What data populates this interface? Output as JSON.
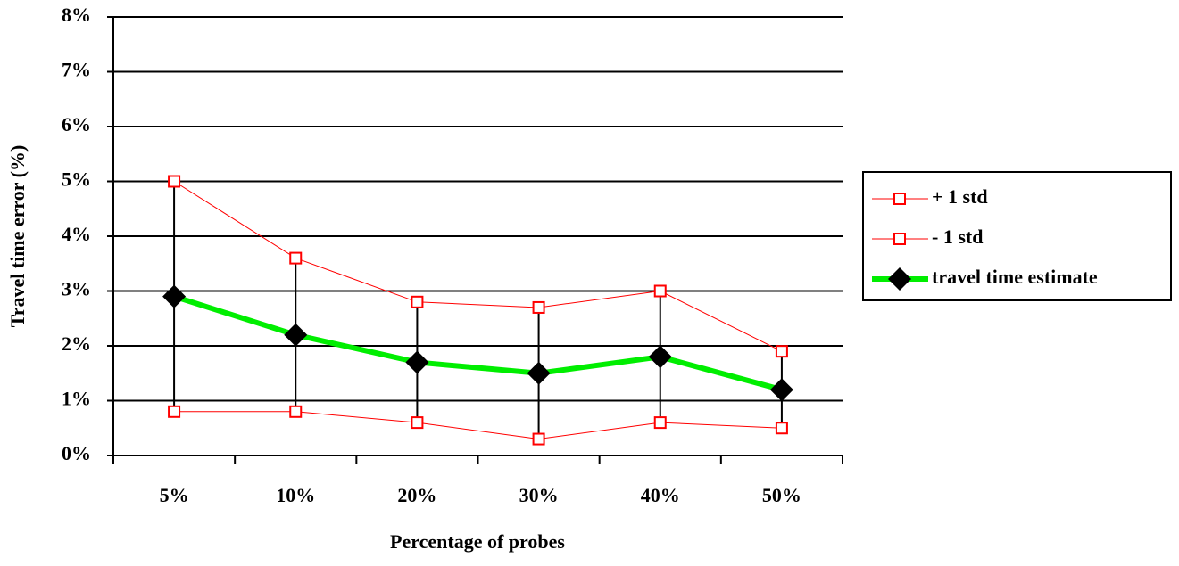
{
  "chart_data": {
    "type": "line",
    "xlabel": "Percentage of probes",
    "ylabel": "Travel time error (%)",
    "categories": [
      "5%",
      "10%",
      "20%",
      "30%",
      "40%",
      "50%"
    ],
    "series": [
      {
        "name": "+ 1 std",
        "color": "#ff0000",
        "marker": "square",
        "width": 1,
        "values": [
          5.0,
          3.6,
          2.8,
          2.7,
          3.0,
          1.9
        ]
      },
      {
        "name": "- 1 std",
        "color": "#ff0000",
        "marker": "square",
        "width": 1,
        "values": [
          0.8,
          0.8,
          0.6,
          0.3,
          0.6,
          0.5
        ]
      },
      {
        "name": "travel time estimate",
        "color": "#00ee00",
        "marker": "diamond",
        "width": 6,
        "values": [
          2.9,
          2.2,
          1.7,
          1.5,
          1.8,
          1.2
        ]
      }
    ],
    "ylim": [
      0,
      8
    ],
    "yticks": [
      {
        "value": 0,
        "label": "0%"
      },
      {
        "value": 1,
        "label": "1%"
      },
      {
        "value": 2,
        "label": "2%"
      },
      {
        "value": 3,
        "label": "3%"
      },
      {
        "value": 4,
        "label": "4%"
      },
      {
        "value": 5,
        "label": "5%"
      },
      {
        "value": 6,
        "label": "6%"
      },
      {
        "value": 7,
        "label": "7%"
      },
      {
        "value": 8,
        "label": "8%"
      }
    ],
    "grid": true,
    "hi_lo_lines": true,
    "legend": "right"
  }
}
